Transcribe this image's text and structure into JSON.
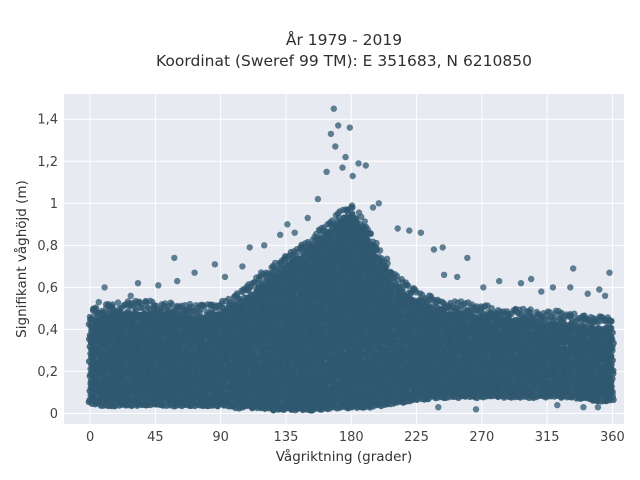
{
  "chart_data": {
    "type": "scatter",
    "title_line1": "År 1979 - 2019",
    "title_line2": "Koordinat (Sweref 99 TM): E 351683, N 6210850",
    "xlabel": "Vågriktning (grader)",
    "ylabel": "Signifikant våghöjd (m)",
    "xlim": [
      -18,
      368
    ],
    "ylim": [
      -0.05,
      1.52
    ],
    "x_ticks": [
      0,
      45,
      90,
      135,
      180,
      225,
      270,
      315,
      360
    ],
    "x_tick_labels": [
      "0",
      "45",
      "90",
      "135",
      "180",
      "225",
      "270",
      "315",
      "360"
    ],
    "y_ticks": [
      0,
      0.2,
      0.4,
      0.6,
      0.8,
      1.0,
      1.2,
      1.4
    ],
    "y_tick_labels": [
      "0",
      "0,2",
      "0,4",
      "0,6",
      "0,8",
      "1",
      "1,2",
      "1,4"
    ],
    "grid": true,
    "marker_color": "#2f5870",
    "background_color": "#e8eaf2",
    "envelope": {
      "x": [
        0,
        10,
        20,
        30,
        40,
        50,
        60,
        70,
        80,
        90,
        100,
        110,
        120,
        130,
        140,
        150,
        160,
        170,
        180,
        190,
        200,
        210,
        220,
        230,
        240,
        250,
        260,
        270,
        280,
        290,
        300,
        310,
        320,
        330,
        340,
        350,
        360
      ],
      "upper": [
        0.45,
        0.47,
        0.48,
        0.49,
        0.49,
        0.48,
        0.48,
        0.47,
        0.47,
        0.48,
        0.52,
        0.57,
        0.63,
        0.68,
        0.73,
        0.78,
        0.84,
        0.9,
        0.95,
        0.86,
        0.73,
        0.62,
        0.56,
        0.52,
        0.5,
        0.49,
        0.48,
        0.47,
        0.46,
        0.45,
        0.45,
        0.44,
        0.44,
        0.43,
        0.42,
        0.42,
        0.41
      ],
      "lower": [
        0.05,
        0.04,
        0.04,
        0.04,
        0.04,
        0.04,
        0.04,
        0.04,
        0.04,
        0.04,
        0.03,
        0.03,
        0.02,
        0.02,
        0.02,
        0.02,
        0.02,
        0.03,
        0.03,
        0.03,
        0.04,
        0.05,
        0.06,
        0.07,
        0.08,
        0.08,
        0.08,
        0.08,
        0.08,
        0.08,
        0.08,
        0.08,
        0.08,
        0.08,
        0.07,
        0.06,
        0.06
      ]
    },
    "outliers": [
      {
        "x": 168,
        "y": 1.45
      },
      {
        "x": 171,
        "y": 1.37
      },
      {
        "x": 179,
        "y": 1.36
      },
      {
        "x": 166,
        "y": 1.33
      },
      {
        "x": 169,
        "y": 1.27
      },
      {
        "x": 176,
        "y": 1.22
      },
      {
        "x": 185,
        "y": 1.19
      },
      {
        "x": 190,
        "y": 1.18
      },
      {
        "x": 174,
        "y": 1.17
      },
      {
        "x": 163,
        "y": 1.15
      },
      {
        "x": 181,
        "y": 1.13
      },
      {
        "x": 199,
        "y": 1.0
      },
      {
        "x": 195,
        "y": 0.98
      },
      {
        "x": 157,
        "y": 1.02
      },
      {
        "x": 150,
        "y": 0.93
      },
      {
        "x": 141,
        "y": 0.86
      },
      {
        "x": 136,
        "y": 0.9
      },
      {
        "x": 131,
        "y": 0.85
      },
      {
        "x": 120,
        "y": 0.8
      },
      {
        "x": 110,
        "y": 0.79
      },
      {
        "x": 105,
        "y": 0.7
      },
      {
        "x": 93,
        "y": 0.65
      },
      {
        "x": 86,
        "y": 0.71
      },
      {
        "x": 72,
        "y": 0.67
      },
      {
        "x": 58,
        "y": 0.74
      },
      {
        "x": 60,
        "y": 0.63
      },
      {
        "x": 47,
        "y": 0.61
      },
      {
        "x": 33,
        "y": 0.62
      },
      {
        "x": 28,
        "y": 0.56
      },
      {
        "x": 10,
        "y": 0.6
      },
      {
        "x": 6,
        "y": 0.53
      },
      {
        "x": 2,
        "y": 0.49
      },
      {
        "x": 212,
        "y": 0.88
      },
      {
        "x": 220,
        "y": 0.87
      },
      {
        "x": 228,
        "y": 0.86
      },
      {
        "x": 237,
        "y": 0.78
      },
      {
        "x": 243,
        "y": 0.79
      },
      {
        "x": 244,
        "y": 0.66
      },
      {
        "x": 253,
        "y": 0.65
      },
      {
        "x": 260,
        "y": 0.74
      },
      {
        "x": 271,
        "y": 0.6
      },
      {
        "x": 282,
        "y": 0.63
      },
      {
        "x": 297,
        "y": 0.62
      },
      {
        "x": 304,
        "y": 0.64
      },
      {
        "x": 311,
        "y": 0.58
      },
      {
        "x": 319,
        "y": 0.6
      },
      {
        "x": 331,
        "y": 0.6
      },
      {
        "x": 333,
        "y": 0.69
      },
      {
        "x": 343,
        "y": 0.57
      },
      {
        "x": 351,
        "y": 0.59
      },
      {
        "x": 358,
        "y": 0.67
      },
      {
        "x": 355,
        "y": 0.56
      },
      {
        "x": 240,
        "y": 0.03
      },
      {
        "x": 266,
        "y": 0.02
      },
      {
        "x": 322,
        "y": 0.04
      },
      {
        "x": 340,
        "y": 0.03
      },
      {
        "x": 350,
        "y": 0.03
      }
    ]
  }
}
